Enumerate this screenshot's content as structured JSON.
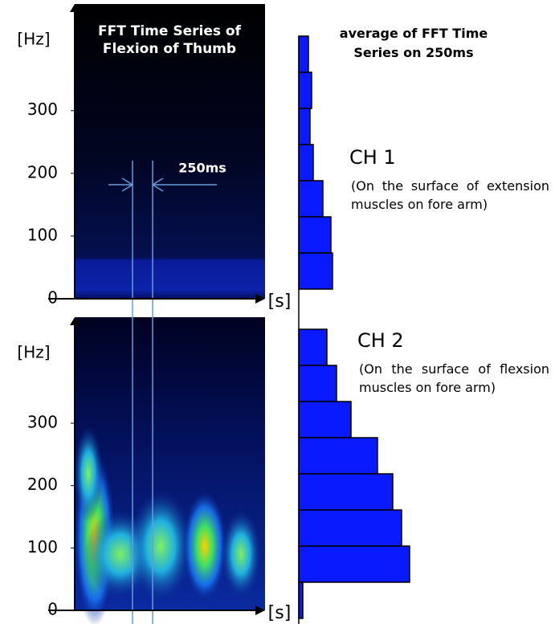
{
  "chart_data": [
    {
      "type": "spectrogram",
      "title": "FFT Time Series of Flexion of Thumb",
      "y_label": "[Hz]",
      "x_label": "[s]",
      "ylim": [
        0,
        470
      ],
      "yticks": [
        0,
        100,
        200,
        300
      ],
      "annotation": "250ms",
      "bar_title": "average of FFT Time Series on 250ms",
      "channel": "CH 1",
      "channel_note": "(On the surface of extension muscles on fore arm)",
      "bar_values": [
        12,
        16,
        14,
        18,
        30,
        40,
        42
      ],
      "bar_color": "#0a1aff"
    },
    {
      "type": "spectrogram",
      "y_label": "[Hz]",
      "x_label": "[s]",
      "ylim": [
        0,
        470
      ],
      "yticks": [
        0,
        100,
        200,
        300
      ],
      "channel": "CH 2",
      "channel_note": "(On the surface of flexsion muscles on fore arm)",
      "bar_values": [
        35,
        47,
        65,
        98,
        117,
        128,
        138,
        5
      ],
      "bar_color": "#0a1aff"
    }
  ]
}
